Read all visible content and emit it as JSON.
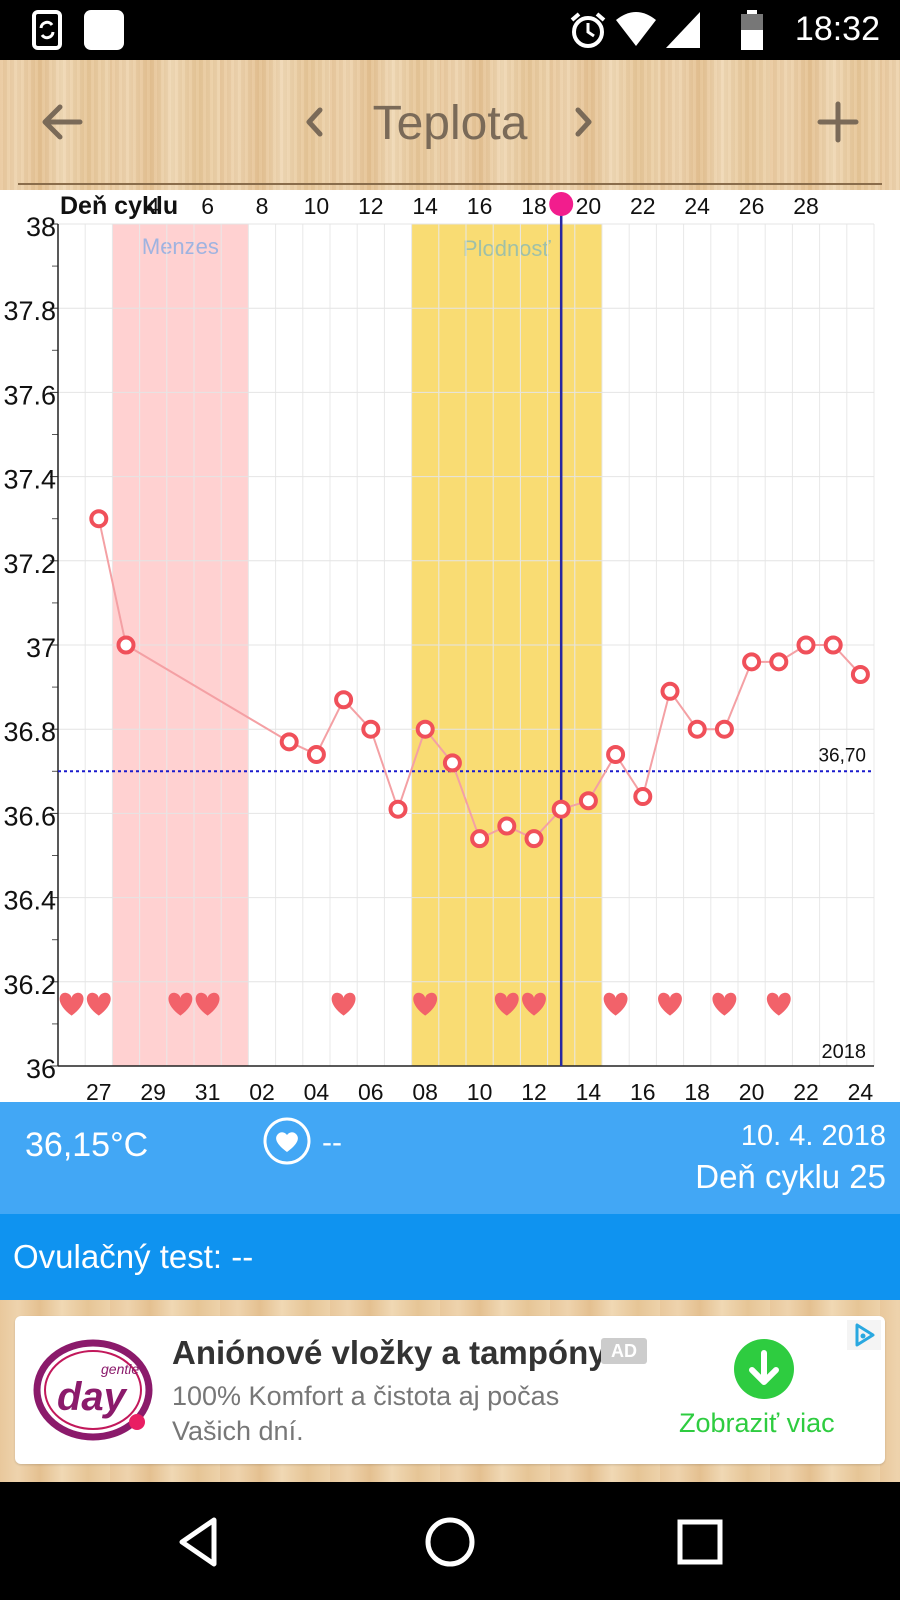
{
  "status_bar": {
    "time": "18:32"
  },
  "appbar": {
    "title": "Teplota"
  },
  "chart_data": {
    "type": "line",
    "title": "Teplota",
    "top_axis_label": "Deň cyklu",
    "top_ticks": [
      "4",
      "6",
      "8",
      "10",
      "12",
      "14",
      "16",
      "18",
      "20",
      "22",
      "24",
      "26",
      "28"
    ],
    "bottom_ticks": [
      "27",
      "29",
      "31",
      "02",
      "04",
      "06",
      "08",
      "10",
      "12",
      "14",
      "16",
      "18",
      "20",
      "22",
      "24"
    ],
    "year_label": "2018",
    "y_ticks": [
      "38",
      "37.8",
      "37.6",
      "37.4",
      "37.2",
      "37",
      "36.8",
      "36.6",
      "36.4",
      "36.2",
      "36"
    ],
    "ylim": [
      36,
      38
    ],
    "x_range_cycle_day": [
      0,
      30
    ],
    "menzes_label": "Menzes",
    "menzes_range": [
      2,
      7
    ],
    "fertility_label": "Plodnosť",
    "fertility_range": [
      13,
      20
    ],
    "today_cycle_day": 18,
    "reference_value": 36.7,
    "reference_label": "36,70",
    "points": [
      {
        "x": 1,
        "y": 37.3
      },
      {
        "x": 2,
        "y": 37.0
      },
      {
        "x": 8,
        "y": 36.77
      },
      {
        "x": 9,
        "y": 36.74
      },
      {
        "x": 10,
        "y": 36.87
      },
      {
        "x": 11,
        "y": 36.8
      },
      {
        "x": 12,
        "y": 36.61
      },
      {
        "x": 13,
        "y": 36.8
      },
      {
        "x": 14,
        "y": 36.72
      },
      {
        "x": 15,
        "y": 36.54
      },
      {
        "x": 16,
        "y": 36.57
      },
      {
        "x": 17,
        "y": 36.54
      },
      {
        "x": 18,
        "y": 36.61
      },
      {
        "x": 19,
        "y": 36.63
      },
      {
        "x": 20,
        "y": 36.74
      },
      {
        "x": 21,
        "y": 36.64
      },
      {
        "x": 22,
        "y": 36.89
      },
      {
        "x": 23,
        "y": 36.8
      },
      {
        "x": 24,
        "y": 36.8
      },
      {
        "x": 25,
        "y": 36.96
      },
      {
        "x": 26,
        "y": 36.96
      },
      {
        "x": 27,
        "y": 37.0
      },
      {
        "x": 28,
        "y": 37.0
      },
      {
        "x": 29,
        "y": 36.93
      }
    ],
    "heart_days": [
      0,
      1,
      4,
      5,
      10,
      13,
      16,
      17,
      20,
      22,
      24,
      26
    ],
    "colors": {
      "line": "#f4a0a4",
      "marker": "#f0505a",
      "menzes": "#ffd1d1",
      "fertility": "#f9dc73",
      "today": "#2828a0",
      "reference": "#1a1acc",
      "heart": "#f2626a"
    }
  },
  "info": {
    "temperature": "36,15°C",
    "heart_value": "--",
    "date": "10. 4. 2018",
    "cycle_day": "Deň cyklu 25",
    "ovulation_test": "Ovulačný test: --"
  },
  "ad": {
    "logo_small": "gentle",
    "logo_big": "day",
    "title": "Aniónové vložky a tampóny",
    "badge": "AD",
    "line1": "100% Komfort a čistota aj počas",
    "line2": "Vašich dní.",
    "cta": "Zobraziť viac"
  }
}
